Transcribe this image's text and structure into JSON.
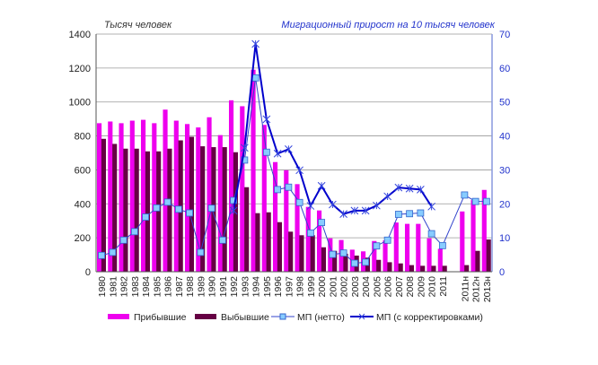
{
  "chart_data": {
    "type": "bar",
    "left_title": "Тысяч человек",
    "right_title": "Миграционный прирост на 10 тысяч человек",
    "categories": [
      "1980",
      "1981",
      "1982",
      "1983",
      "1984",
      "1985",
      "1986",
      "1987",
      "1988",
      "1989",
      "1990",
      "1991",
      "1992",
      "1993",
      "1994",
      "1995",
      "1996",
      "1997",
      "1998",
      "1999",
      "2000",
      "2001",
      "2002",
      "2003",
      "2004",
      "2005",
      "2006",
      "2007",
      "2008",
      "2009",
      "2010",
      "2011",
      "2011н",
      "2012н",
      "2013н"
    ],
    "y_left": {
      "min": 0,
      "max": 1400,
      "ticks": [
        0,
        200,
        400,
        600,
        800,
        1000,
        1200,
        1400
      ]
    },
    "y_right": {
      "min": 0,
      "max": 70,
      "ticks": [
        0,
        10,
        20,
        30,
        40,
        50,
        60,
        70
      ]
    },
    "grid": true,
    "legend_position": "bottom",
    "series": [
      {
        "name": "Прибывшие",
        "type": "bar",
        "axis": "left",
        "color": "#ee00ee",
        "values": [
          875,
          885,
          875,
          890,
          895,
          875,
          955,
          890,
          870,
          850,
          910,
          805,
          1010,
          975,
          1190,
          865,
          646,
          598,
          516,
          382,
          361,
          197,
          187,
          130,
          120,
          181,
          185,
          290,
          282,
          282,
          197,
          135,
          355,
          422,
          482
        ]
      },
      {
        "name": "Выбывшие",
        "type": "bar",
        "axis": "left",
        "color": "#660044",
        "values": [
          783,
          753,
          725,
          725,
          709,
          709,
          725,
          774,
          795,
          739,
          734,
          734,
          704,
          498,
          345,
          350,
          292,
          236,
          215,
          215,
          144,
          123,
          106,
          95,
          83,
          70,
          56,
          49,
          39,
          35,
          35,
          35,
          39,
          123,
          190
        ]
      },
      {
        "name": "МП  (нетто)",
        "type": "line",
        "axis": "right",
        "color": "#3344cc",
        "marker": "square",
        "marker_color": "#88ccff",
        "values": [
          4.8,
          5.7,
          9.3,
          11.8,
          16.1,
          18.8,
          20.5,
          18.4,
          17.3,
          5.7,
          18.7,
          9.3,
          21,
          32.9,
          57.1,
          35.2,
          24.2,
          24.9,
          20.4,
          11.4,
          14.5,
          5.1,
          5.5,
          2.5,
          2.8,
          7.6,
          9.3,
          16.9,
          17.1,
          17.3,
          11.2,
          7.7,
          22.6,
          20.7,
          20.7
        ]
      },
      {
        "name": "МП  (с корректировками)",
        "type": "line",
        "axis": "right",
        "color": "#0000cc",
        "marker": "cross",
        "values": [
          null,
          null,
          null,
          null,
          null,
          null,
          null,
          null,
          null,
          null,
          null,
          null,
          18,
          36.5,
          67.1,
          44.9,
          34.8,
          36.1,
          29.9,
          19.4,
          25.3,
          19.8,
          17,
          18,
          18,
          19.5,
          22.2,
          24.8,
          24.5,
          24.2,
          19.2,
          null,
          null,
          null,
          null
        ]
      }
    ]
  }
}
